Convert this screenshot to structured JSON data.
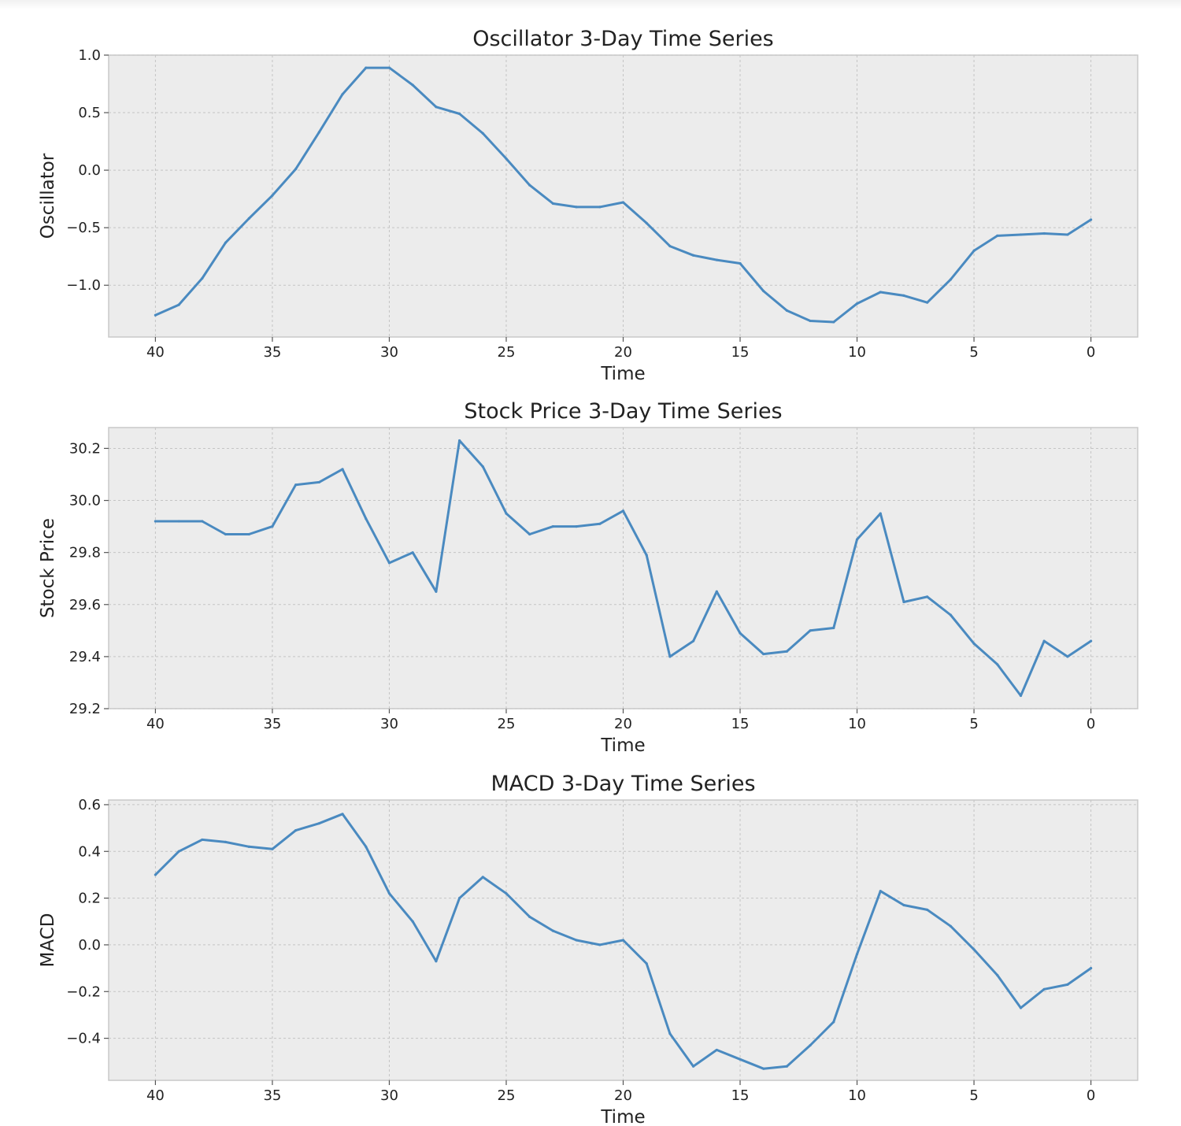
{
  "chart_data": [
    {
      "type": "line",
      "title": "Oscillator 3-Day Time Series",
      "xlabel": "Time",
      "ylabel": "Oscillator",
      "x_inverted": true,
      "xlim": [
        42,
        -2
      ],
      "ylim": [
        -1.45,
        1.0
      ],
      "xticks": [
        40,
        35,
        30,
        25,
        20,
        15,
        10,
        5,
        0
      ],
      "yticks": [
        1.0,
        0.5,
        0.0,
        -0.5,
        -1.0
      ],
      "ytick_labels": [
        "1.0",
        "0.5",
        "0.0",
        "−0.5",
        "−1.0"
      ],
      "grid": true,
      "color": "#4a8ac0",
      "x": [
        40,
        39,
        38,
        37,
        36,
        35,
        34,
        33,
        32,
        31,
        30,
        29,
        28,
        27,
        26,
        25,
        24,
        23,
        22,
        21,
        20,
        19,
        18,
        17,
        16,
        15,
        14,
        13,
        12,
        11,
        10,
        9,
        8,
        7,
        6,
        5,
        4,
        3,
        2,
        1,
        0
      ],
      "y": [
        -1.26,
        -1.17,
        -0.94,
        -0.63,
        -0.42,
        -0.22,
        0.01,
        0.33,
        0.66,
        0.89,
        0.89,
        0.74,
        0.55,
        0.49,
        0.32,
        0.1,
        -0.13,
        -0.29,
        -0.32,
        -0.32,
        -0.28,
        -0.46,
        -0.66,
        -0.74,
        -0.78,
        -0.81,
        -1.05,
        -1.22,
        -1.31,
        -1.32,
        -1.16,
        -1.06,
        -1.09,
        -1.15,
        -0.95,
        -0.7,
        -0.57,
        -0.56,
        -0.55,
        -0.56,
        -0.43
      ]
    },
    {
      "type": "line",
      "title": "Stock Price 3-Day Time Series",
      "xlabel": "Time",
      "ylabel": "Stock Price",
      "x_inverted": true,
      "xlim": [
        42,
        -2
      ],
      "ylim": [
        29.2,
        30.28
      ],
      "xticks": [
        40,
        35,
        30,
        25,
        20,
        15,
        10,
        5,
        0
      ],
      "yticks": [
        30.2,
        30.0,
        29.8,
        29.6,
        29.4,
        29.2
      ],
      "ytick_labels": [
        "30.2",
        "30.0",
        "29.8",
        "29.6",
        "29.4",
        "29.2"
      ],
      "grid": true,
      "color": "#4a8ac0",
      "x": [
        40,
        39,
        38,
        37,
        36,
        35,
        34,
        33,
        32,
        31,
        30,
        29,
        28,
        27,
        26,
        25,
        24,
        23,
        22,
        21,
        20,
        19,
        18,
        17,
        16,
        15,
        14,
        13,
        12,
        11,
        10,
        9,
        8,
        7,
        6,
        5,
        4,
        3,
        2,
        1,
        0
      ],
      "y": [
        29.92,
        29.92,
        29.92,
        29.87,
        29.87,
        29.9,
        30.06,
        30.07,
        30.12,
        29.93,
        29.76,
        29.8,
        29.65,
        30.23,
        30.13,
        29.95,
        29.87,
        29.9,
        29.9,
        29.91,
        29.96,
        29.79,
        29.4,
        29.46,
        29.65,
        29.49,
        29.41,
        29.42,
        29.5,
        29.51,
        29.85,
        29.95,
        29.61,
        29.63,
        29.56,
        29.45,
        29.37,
        29.25,
        29.46,
        29.4,
        29.46
      ]
    },
    {
      "type": "line",
      "title": "MACD 3-Day Time Series",
      "xlabel": "Time",
      "ylabel": "MACD",
      "x_inverted": true,
      "xlim": [
        42,
        -2
      ],
      "ylim": [
        -0.58,
        0.62
      ],
      "xticks": [
        40,
        35,
        30,
        25,
        20,
        15,
        10,
        5,
        0
      ],
      "yticks": [
        0.6,
        0.4,
        0.2,
        0.0,
        -0.2,
        -0.4
      ],
      "ytick_labels": [
        "0.6",
        "0.4",
        "0.2",
        "0.0",
        "−0.2",
        "−0.4"
      ],
      "grid": true,
      "color": "#4a8ac0",
      "x": [
        40,
        39,
        38,
        37,
        36,
        35,
        34,
        33,
        32,
        31,
        30,
        29,
        28,
        27,
        26,
        25,
        24,
        23,
        22,
        21,
        20,
        19,
        18,
        17,
        16,
        15,
        14,
        13,
        12,
        11,
        10,
        9,
        8,
        7,
        6,
        5,
        4,
        3,
        2,
        1,
        0
      ],
      "y": [
        0.3,
        0.4,
        0.45,
        0.44,
        0.42,
        0.41,
        0.49,
        0.52,
        0.56,
        0.42,
        0.22,
        0.1,
        -0.07,
        0.2,
        0.29,
        0.22,
        0.12,
        0.06,
        0.02,
        0.0,
        0.02,
        -0.08,
        -0.38,
        -0.52,
        -0.45,
        -0.49,
        -0.53,
        -0.52,
        -0.43,
        -0.33,
        -0.04,
        0.23,
        0.17,
        0.15,
        0.08,
        -0.02,
        -0.13,
        -0.27,
        -0.19,
        -0.17,
        -0.1
      ]
    }
  ]
}
